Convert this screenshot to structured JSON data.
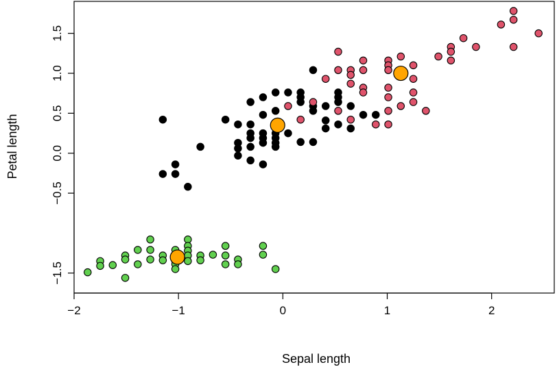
{
  "chart_data": {
    "type": "scatter",
    "title": "",
    "xlabel": "Sepal length",
    "ylabel": "Petal length",
    "xlim": [
      -2.0,
      2.6
    ],
    "ylim": [
      -1.75,
      1.9
    ],
    "x_ticks": [
      -2,
      -1,
      0,
      1,
      2
    ],
    "x_tick_labels": [
      "−2",
      "−1",
      "0",
      "1",
      "2"
    ],
    "y_ticks": [
      -1.5,
      -0.5,
      0.0,
      0.5,
      1.0,
      1.5
    ],
    "y_tick_labels": [
      "−1.5",
      "−0.5",
      "0.0",
      "0.5",
      "1.0",
      "1.5"
    ],
    "grid": false,
    "legend": "none",
    "series": [
      {
        "color": "#61D04F",
        "points": [
          [
            -1.87,
            -1.49
          ],
          [
            -1.75,
            -1.35
          ],
          [
            -1.75,
            -1.41
          ],
          [
            -1.63,
            -1.4
          ],
          [
            -1.51,
            -1.28
          ],
          [
            -1.51,
            -1.33
          ],
          [
            -1.51,
            -1.56
          ],
          [
            -1.39,
            -1.21
          ],
          [
            -1.39,
            -1.39
          ],
          [
            -1.27,
            -1.08
          ],
          [
            -1.27,
            -1.21
          ],
          [
            -1.27,
            -1.33
          ],
          [
            -1.15,
            -1.28
          ],
          [
            -1.15,
            -1.34
          ],
          [
            -1.03,
            -1.21
          ],
          [
            -1.03,
            -1.28
          ],
          [
            -1.03,
            -1.35
          ],
          [
            -1.03,
            -1.39
          ],
          [
            -1.03,
            -1.45
          ],
          [
            -0.91,
            -1.08
          ],
          [
            -0.91,
            -1.16
          ],
          [
            -0.91,
            -1.22
          ],
          [
            -0.91,
            -1.28
          ],
          [
            -0.91,
            -1.35
          ],
          [
            -0.79,
            -1.28
          ],
          [
            -0.79,
            -1.34
          ],
          [
            -0.67,
            -1.27
          ],
          [
            -0.55,
            -1.16
          ],
          [
            -0.55,
            -1.28
          ],
          [
            -0.55,
            -1.39
          ],
          [
            -0.43,
            -1.33
          ],
          [
            -0.43,
            -1.39
          ],
          [
            -0.19,
            -1.16
          ],
          [
            -0.19,
            -1.27
          ],
          [
            -0.07,
            -1.45
          ]
        ]
      },
      {
        "color": "#000000",
        "points": [
          [
            -1.15,
            0.42
          ],
          [
            -1.15,
            -0.26
          ],
          [
            -1.03,
            -0.14
          ],
          [
            -1.03,
            -0.26
          ],
          [
            -0.91,
            -0.42
          ],
          [
            -0.79,
            0.08
          ],
          [
            -0.55,
            0.42
          ],
          [
            -0.43,
            0.36
          ],
          [
            -0.43,
            0.13
          ],
          [
            -0.43,
            0.06
          ],
          [
            -0.43,
            -0.03
          ],
          [
            -0.31,
            0.64
          ],
          [
            -0.31,
            0.36
          ],
          [
            -0.31,
            0.25
          ],
          [
            -0.31,
            0.19
          ],
          [
            -0.31,
            0.08
          ],
          [
            -0.31,
            -0.09
          ],
          [
            -0.19,
            0.7
          ],
          [
            -0.19,
            0.48
          ],
          [
            -0.19,
            0.25
          ],
          [
            -0.19,
            0.19
          ],
          [
            -0.19,
            0.13
          ],
          [
            -0.19,
            -0.14
          ],
          [
            -0.07,
            0.76
          ],
          [
            -0.07,
            0.53
          ],
          [
            -0.07,
            0.25
          ],
          [
            -0.07,
            0.19
          ],
          [
            -0.07,
            0.13
          ],
          [
            -0.07,
            0.08
          ],
          [
            0.05,
            0.76
          ],
          [
            0.05,
            0.25
          ],
          [
            0.17,
            0.76
          ],
          [
            0.17,
            0.7
          ],
          [
            0.17,
            0.64
          ],
          [
            0.17,
            0.14
          ],
          [
            0.29,
            1.04
          ],
          [
            0.29,
            0.59
          ],
          [
            0.29,
            0.53
          ],
          [
            0.29,
            0.14
          ],
          [
            0.41,
            0.59
          ],
          [
            0.41,
            0.41
          ],
          [
            0.41,
            0.31
          ],
          [
            0.53,
            0.76
          ],
          [
            0.53,
            0.7
          ],
          [
            0.53,
            0.64
          ],
          [
            0.53,
            0.36
          ],
          [
            0.65,
            0.59
          ],
          [
            0.65,
            0.31
          ],
          [
            0.77,
            0.48
          ],
          [
            0.89,
            0.48
          ]
        ]
      },
      {
        "color": "#DF536B",
        "points": [
          [
            0.05,
            0.59
          ],
          [
            0.17,
            0.42
          ],
          [
            0.29,
            0.64
          ],
          [
            0.41,
            0.93
          ],
          [
            0.53,
            1.27
          ],
          [
            0.53,
            1.04
          ],
          [
            0.53,
            0.53
          ],
          [
            0.65,
            1.04
          ],
          [
            0.65,
            0.98
          ],
          [
            0.65,
            0.87
          ],
          [
            0.65,
            0.42
          ],
          [
            0.77,
            1.16
          ],
          [
            0.77,
            1.04
          ],
          [
            0.77,
            0.82
          ],
          [
            0.77,
            0.76
          ],
          [
            0.89,
            0.36
          ],
          [
            1.01,
            1.16
          ],
          [
            1.01,
            1.1
          ],
          [
            1.01,
            1.04
          ],
          [
            1.01,
            0.82
          ],
          [
            1.01,
            0.7
          ],
          [
            1.01,
            0.53
          ],
          [
            1.01,
            0.36
          ],
          [
            1.13,
            1.21
          ],
          [
            1.13,
            0.59
          ],
          [
            1.25,
            1.1
          ],
          [
            1.25,
            0.93
          ],
          [
            1.25,
            0.76
          ],
          [
            1.25,
            0.64
          ],
          [
            1.37,
            0.53
          ],
          [
            1.49,
            1.21
          ],
          [
            1.61,
            1.33
          ],
          [
            1.61,
            1.27
          ],
          [
            1.61,
            1.16
          ],
          [
            1.73,
            1.44
          ],
          [
            1.85,
            1.33
          ],
          [
            2.09,
            1.61
          ],
          [
            2.21,
            1.78
          ],
          [
            2.21,
            1.67
          ],
          [
            2.21,
            1.33
          ],
          [
            2.45,
            1.5
          ]
        ]
      }
    ],
    "centers": {
      "color": "#FFA500",
      "points": [
        [
          -1.01,
          -1.3
        ],
        [
          -0.05,
          0.35
        ],
        [
          1.13,
          1.0
        ]
      ]
    }
  }
}
